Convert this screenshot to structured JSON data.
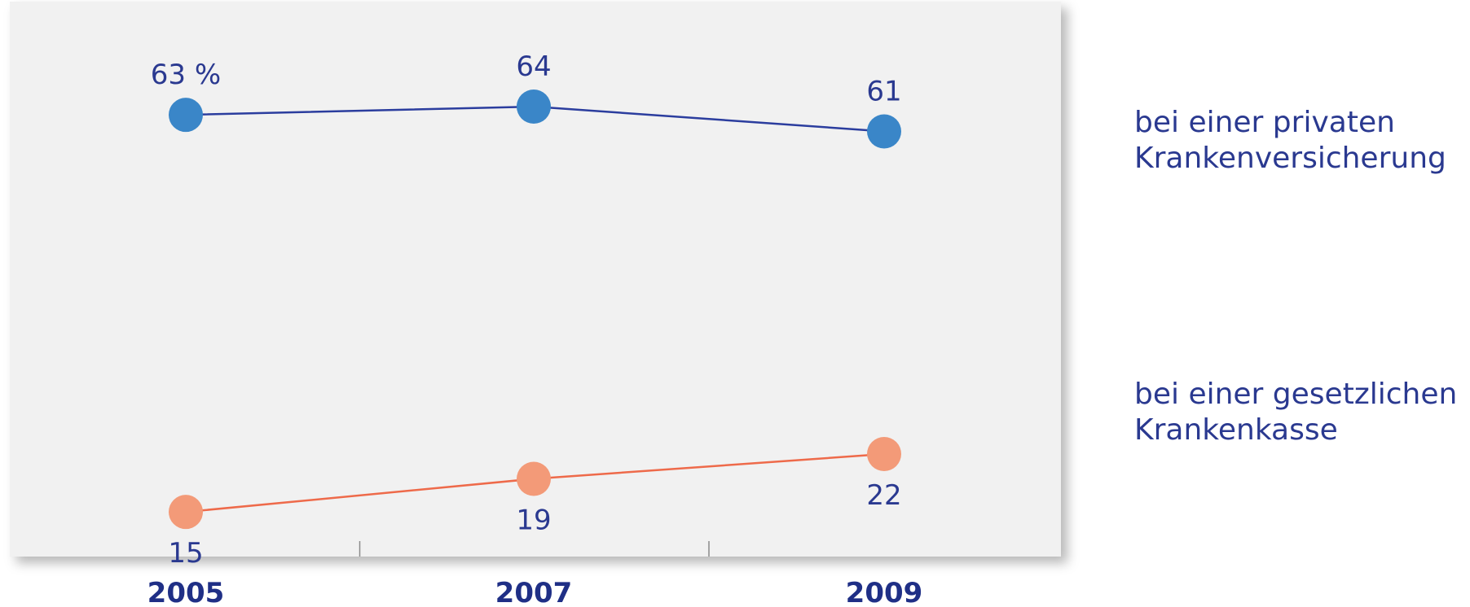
{
  "chart_data": {
    "type": "line",
    "categories": [
      "2005",
      "2007",
      "2009"
    ],
    "series": [
      {
        "name": "bei einer privaten Krankenversicherung",
        "name_lines": [
          "bei einer privaten",
          "Krankenversicherung"
        ],
        "values": [
          63,
          64,
          61
        ],
        "data_labels": [
          "63 %",
          "64",
          "61"
        ],
        "color": "#3a86c8",
        "line_color": "#2b3d9e",
        "label_position": "above"
      },
      {
        "name": "bei einer gesetzlichen Krankenkasse",
        "name_lines": [
          "bei einer gesetzlichen",
          "Krankenkasse"
        ],
        "values": [
          15,
          19,
          22
        ],
        "data_labels": [
          "15",
          "19",
          "22"
        ],
        "color": "#f39a78",
        "line_color": "#ee6a4a",
        "label_position": "below"
      }
    ],
    "title": "",
    "xlabel": "",
    "ylabel": "",
    "ylim": [
      10,
      70
    ],
    "grid": false,
    "legend": "right",
    "colors": {
      "plot_background": "#f1f1f1",
      "text": "#2a3990",
      "tick_label": "#1f2f86",
      "tick_mark": "#8a8a8a"
    }
  }
}
